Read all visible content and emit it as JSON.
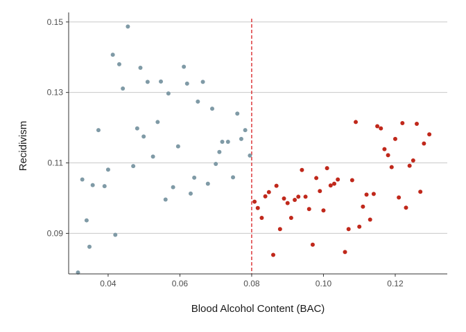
{
  "chart_data": {
    "type": "scatter",
    "xlabel": "Blood Alcohol Content (BAC)",
    "ylabel": "Recidivism",
    "xlim": [
      0.029,
      0.1345
    ],
    "ylim": [
      0.0785,
      0.1527
    ],
    "xticks": [
      0.04,
      0.06,
      0.08,
      0.1,
      0.12
    ],
    "xtick_labels": [
      "0.04",
      "0.06",
      "0.08",
      "0.10",
      "0.12"
    ],
    "yticks": [
      0.09,
      0.11,
      0.13,
      0.15
    ],
    "ytick_labels": [
      "0.09",
      "0.11",
      "0.13",
      "0.15"
    ],
    "grid": "horizontal major",
    "cutoff": {
      "x": 0.08,
      "color": "#d7191c",
      "style": "dashed"
    },
    "series": [
      {
        "color": "#7f9aa6",
        "points": [
          [
            0.0316,
            0.0789
          ],
          [
            0.0328,
            0.1053
          ],
          [
            0.034,
            0.0937
          ],
          [
            0.0348,
            0.0862
          ],
          [
            0.0357,
            0.1037
          ],
          [
            0.0373,
            0.1193
          ],
          [
            0.039,
            0.1034
          ],
          [
            0.04,
            0.1081
          ],
          [
            0.0413,
            0.1407
          ],
          [
            0.042,
            0.0896
          ],
          [
            0.0431,
            0.138
          ],
          [
            0.0441,
            0.1311
          ],
          [
            0.0455,
            0.1487
          ],
          [
            0.047,
            0.1091
          ],
          [
            0.0481,
            0.1198
          ],
          [
            0.049,
            0.137
          ],
          [
            0.0499,
            0.1175
          ],
          [
            0.051,
            0.133
          ],
          [
            0.0525,
            0.1118
          ],
          [
            0.0538,
            0.1216
          ],
          [
            0.0547,
            0.1331
          ],
          [
            0.056,
            0.0996
          ],
          [
            0.0568,
            0.1297
          ],
          [
            0.0581,
            0.1031
          ],
          [
            0.0595,
            0.1147
          ],
          [
            0.0611,
            0.1373
          ],
          [
            0.062,
            0.1325
          ],
          [
            0.063,
            0.1013
          ],
          [
            0.064,
            0.1058
          ],
          [
            0.065,
            0.1274
          ],
          [
            0.0664,
            0.133
          ],
          [
            0.0678,
            0.1041
          ],
          [
            0.069,
            0.1254
          ],
          [
            0.07,
            0.1097
          ],
          [
            0.071,
            0.1131
          ],
          [
            0.0718,
            0.116
          ],
          [
            0.0734,
            0.116
          ],
          [
            0.0748,
            0.1059
          ],
          [
            0.076,
            0.124
          ],
          [
            0.0771,
            0.1168
          ],
          [
            0.0782,
            0.1193
          ],
          [
            0.0795,
            0.1121
          ]
        ]
      },
      {
        "color": "#c0281b",
        "points": [
          [
            0.0808,
            0.099
          ],
          [
            0.0817,
            0.0972
          ],
          [
            0.0828,
            0.0944
          ],
          [
            0.0838,
            0.1005
          ],
          [
            0.0848,
            0.1017
          ],
          [
            0.086,
            0.0839
          ],
          [
            0.0869,
            0.1035
          ],
          [
            0.0879,
            0.0912
          ],
          [
            0.089,
            0.0999
          ],
          [
            0.09,
            0.0986
          ],
          [
            0.091,
            0.0944
          ],
          [
            0.092,
            0.0995
          ],
          [
            0.093,
            0.1004
          ],
          [
            0.094,
            0.108
          ],
          [
            0.095,
            0.1004
          ],
          [
            0.096,
            0.0969
          ],
          [
            0.097,
            0.0868
          ],
          [
            0.098,
            0.1057
          ],
          [
            0.099,
            0.102
          ],
          [
            0.1,
            0.0965
          ],
          [
            0.101,
            0.1085
          ],
          [
            0.102,
            0.1036
          ],
          [
            0.103,
            0.1041
          ],
          [
            0.104,
            0.1053
          ],
          [
            0.106,
            0.0847
          ],
          [
            0.107,
            0.0912
          ],
          [
            0.108,
            0.1051
          ],
          [
            0.109,
            0.1216
          ],
          [
            0.11,
            0.0919
          ],
          [
            0.111,
            0.0976
          ],
          [
            0.112,
            0.101
          ],
          [
            0.113,
            0.0939
          ],
          [
            0.114,
            0.1012
          ],
          [
            0.115,
            0.1204
          ],
          [
            0.116,
            0.1198
          ],
          [
            0.117,
            0.1139
          ],
          [
            0.118,
            0.1122
          ],
          [
            0.119,
            0.1088
          ],
          [
            0.12,
            0.1168
          ],
          [
            0.121,
            0.1002
          ],
          [
            0.122,
            0.1213
          ],
          [
            0.123,
            0.0973
          ],
          [
            0.124,
            0.1092
          ],
          [
            0.125,
            0.1107
          ],
          [
            0.126,
            0.1211
          ],
          [
            0.127,
            0.1018
          ],
          [
            0.128,
            0.1155
          ],
          [
            0.1295,
            0.1181
          ]
        ]
      }
    ]
  }
}
